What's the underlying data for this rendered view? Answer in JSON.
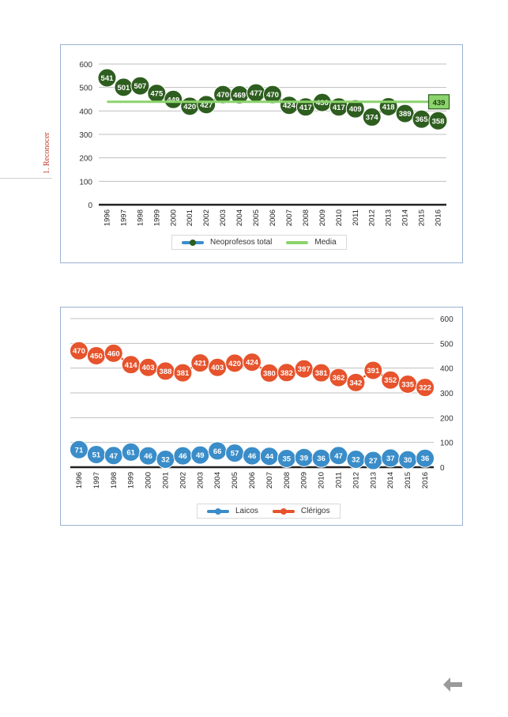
{
  "sidebar": {
    "section_label": "1. Reconocer"
  },
  "colors": {
    "green_dark": "#2e5e1f",
    "green_light": "#8bd46c",
    "blue": "#3a8dc9",
    "red": "#e6532c",
    "grid": "#bfbfbf"
  },
  "icons": {
    "back": "left-arrow-icon"
  },
  "chart_data": [
    {
      "type": "line",
      "x": [
        "1996",
        "1997",
        "1998",
        "1999",
        "2000",
        "2001",
        "2002",
        "2003",
        "2004",
        "2005",
        "2006",
        "2007",
        "2008",
        "2009",
        "2010",
        "2011",
        "2012",
        "2013",
        "2014",
        "2015",
        "2016"
      ],
      "series": [
        {
          "name": "Neoprofesos total",
          "values": [
            541,
            501,
            507,
            475,
            449,
            420,
            427,
            470,
            469,
            477,
            470,
            424,
            417,
            436,
            417,
            409,
            374,
            418,
            389,
            365,
            358
          ]
        },
        {
          "name": "Media",
          "values": [
            439,
            439,
            439,
            439,
            439,
            439,
            439,
            439,
            439,
            439,
            439,
            439,
            439,
            439,
            439,
            439,
            439,
            439,
            439,
            439,
            439
          ]
        }
      ],
      "media_label": "439",
      "yticks": [
        "0",
        "100",
        "200",
        "300",
        "400",
        "500",
        "600"
      ],
      "ylim": [
        0,
        600
      ],
      "y_axis_side": "left",
      "legend_position": "bottom",
      "grid": true
    },
    {
      "type": "line",
      "x": [
        "1996",
        "1997",
        "1998",
        "1999",
        "2000",
        "2001",
        "2002",
        "2003",
        "2004",
        "2005",
        "2006",
        "2007",
        "2008",
        "2009",
        "2010",
        "2011",
        "2012",
        "2013",
        "2014",
        "2015",
        "2016"
      ],
      "series": [
        {
          "name": "Laicos",
          "values": [
            71,
            51,
            47,
            61,
            46,
            32,
            46,
            49,
            66,
            57,
            46,
            44,
            35,
            39,
            36,
            47,
            32,
            27,
            37,
            30,
            36
          ]
        },
        {
          "name": "Clérigos",
          "values": [
            470,
            450,
            460,
            414,
            403,
            388,
            381,
            421,
            403,
            420,
            424,
            380,
            382,
            397,
            381,
            362,
            342,
            391,
            352,
            335,
            322
          ]
        }
      ],
      "yticks": [
        "0",
        "100",
        "200",
        "300",
        "400",
        "500",
        "600"
      ],
      "ylim": [
        0,
        600
      ],
      "y_axis_side": "right",
      "legend_position": "bottom",
      "grid": true
    }
  ]
}
